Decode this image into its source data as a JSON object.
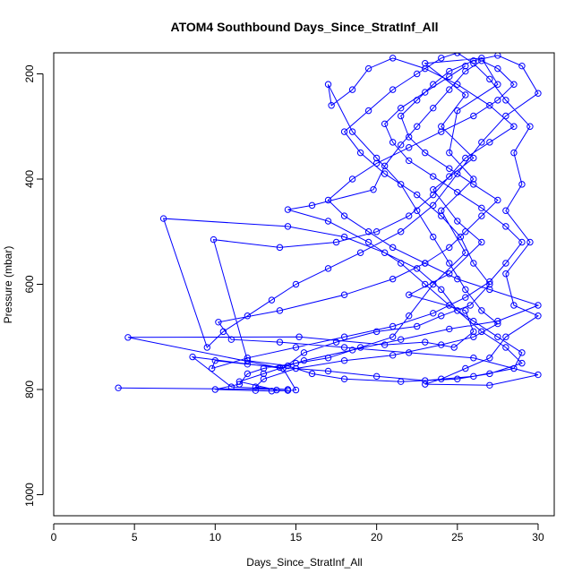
{
  "chart_data": {
    "type": "scatter",
    "title": "ATOM4 Southbound Days_Since_StratInf_All",
    "xlabel": "Days_Since_StratInf_All",
    "ylabel": "Pressure (mbar)",
    "xlim": [
      0,
      31
    ],
    "ylim": [
      1040,
      160
    ],
    "y_inverted": true,
    "x_ticks": [
      0,
      5,
      10,
      15,
      20,
      25,
      30
    ],
    "y_ticks": [
      200,
      400,
      600,
      800,
      1000
    ],
    "color": "#0000ff",
    "marker": "open-circle",
    "connected": true,
    "series": [
      {
        "points": [
          [
            4.0,
            797
          ],
          [
            14.5,
            800
          ],
          [
            11.0,
            795
          ],
          [
            8.6,
            738
          ],
          [
            14.2,
            760
          ],
          [
            4.6,
            701
          ],
          [
            15.2,
            700
          ],
          [
            20.5,
            715
          ],
          [
            23.0,
            710
          ],
          [
            24.8,
            720
          ],
          [
            26.0,
            690
          ],
          [
            25.5,
            650
          ],
          [
            22.0,
            620
          ],
          [
            24.5,
            580
          ],
          [
            26.5,
            520
          ],
          [
            25.0,
            480
          ],
          [
            23.5,
            420
          ],
          [
            26.0,
            360
          ],
          [
            24.0,
            300
          ],
          [
            25.5,
            240
          ],
          [
            23.0,
            180
          ],
          [
            26.5,
            170
          ],
          [
            27.5,
            220
          ],
          [
            25.0,
            270
          ],
          [
            24.5,
            350
          ],
          [
            26.0,
            400
          ],
          [
            24.0,
            460
          ],
          [
            25.5,
            540
          ],
          [
            23.5,
            600
          ],
          [
            22.0,
            660
          ],
          [
            21.0,
            700
          ],
          [
            19.0,
            720
          ],
          [
            17.0,
            740
          ],
          [
            15.0,
            750
          ],
          [
            13.0,
            760
          ],
          [
            12.0,
            770
          ],
          [
            11.5,
            790
          ],
          [
            10.0,
            800
          ],
          [
            12.5,
            802
          ],
          [
            13.5,
            803
          ],
          [
            14.5,
            802
          ],
          [
            15.0,
            801
          ],
          [
            14.2,
            760
          ],
          [
            15.5,
            730
          ],
          [
            17.5,
            710
          ],
          [
            20.0,
            690
          ],
          [
            22.5,
            680
          ],
          [
            24.0,
            660
          ],
          [
            25.8,
            640
          ],
          [
            27.0,
            600
          ],
          [
            26.0,
            560
          ],
          [
            25.2,
            510
          ],
          [
            24.0,
            470
          ],
          [
            22.5,
            430
          ],
          [
            20.5,
            390
          ],
          [
            19.0,
            350
          ],
          [
            18.0,
            310
          ],
          [
            19.5,
            270
          ],
          [
            21.0,
            230
          ],
          [
            22.5,
            200
          ],
          [
            24.0,
            170
          ],
          [
            25.0,
            160
          ],
          [
            26.0,
            180
          ],
          [
            27.0,
            210
          ],
          [
            28.0,
            250
          ],
          [
            29.5,
            300
          ],
          [
            28.5,
            350
          ],
          [
            29.0,
            410
          ],
          [
            28.0,
            460
          ],
          [
            29.5,
            520
          ],
          [
            28.0,
            580
          ],
          [
            28.5,
            640
          ],
          [
            30.0,
            660
          ],
          [
            28.0,
            700
          ],
          [
            27.0,
            740
          ],
          [
            25.5,
            760
          ],
          [
            24.0,
            780
          ],
          [
            23.0,
            790
          ],
          [
            27.0,
            792
          ],
          [
            30.0,
            772
          ],
          [
            26.0,
            740
          ],
          [
            22.0,
            730
          ],
          [
            18.0,
            720
          ],
          [
            14.0,
            710
          ],
          [
            11.0,
            705
          ],
          [
            10.2,
            672
          ],
          [
            14.0,
            650
          ],
          [
            18.0,
            620
          ],
          [
            21.0,
            590
          ],
          [
            23.0,
            560
          ],
          [
            24.5,
            530
          ],
          [
            25.5,
            500
          ],
          [
            26.5,
            470
          ],
          [
            27.5,
            440
          ],
          [
            26.0,
            410
          ],
          [
            24.5,
            380
          ],
          [
            23.0,
            350
          ],
          [
            22.0,
            320
          ],
          [
            21.5,
            280
          ],
          [
            22.5,
            250
          ],
          [
            23.5,
            220
          ],
          [
            24.5,
            195
          ],
          [
            26.0,
            175
          ],
          [
            27.5,
            165
          ],
          [
            29.0,
            185
          ],
          [
            30.0,
            237
          ],
          [
            28.0,
            280
          ],
          [
            26.5,
            330
          ],
          [
            25.0,
            390
          ],
          [
            23.5,
            450
          ],
          [
            21.5,
            500
          ],
          [
            19.0,
            540
          ],
          [
            17.0,
            570
          ],
          [
            15.0,
            600
          ],
          [
            13.5,
            630
          ],
          [
            12.0,
            660
          ],
          [
            10.5,
            690
          ],
          [
            9.5,
            720
          ],
          [
            6.8,
            475
          ],
          [
            14.5,
            490
          ],
          [
            18.0,
            510
          ],
          [
            20.5,
            540
          ],
          [
            22.5,
            570
          ],
          [
            24.0,
            610
          ],
          [
            25.0,
            650
          ],
          [
            26.5,
            690
          ],
          [
            28.0,
            720
          ],
          [
            29.0,
            750
          ],
          [
            27.0,
            770
          ],
          [
            25.0,
            780
          ],
          [
            21.5,
            785
          ],
          [
            18.0,
            780
          ],
          [
            16.0,
            770
          ],
          [
            14.5,
            755
          ],
          [
            12.0,
            745
          ],
          [
            9.9,
            515
          ],
          [
            14.0,
            530
          ],
          [
            17.5,
            520
          ],
          [
            20.0,
            500
          ],
          [
            22.0,
            470
          ],
          [
            23.5,
            430
          ],
          [
            24.5,
            395
          ],
          [
            25.5,
            360
          ],
          [
            27.0,
            330
          ],
          [
            28.5,
            300
          ],
          [
            27.0,
            260
          ],
          [
            25.0,
            220
          ],
          [
            23.0,
            190
          ],
          [
            21.0,
            170
          ],
          [
            19.5,
            190
          ],
          [
            18.5,
            230
          ],
          [
            17.2,
            260
          ],
          [
            17.0,
            220
          ],
          [
            18.5,
            310
          ],
          [
            20.0,
            360
          ],
          [
            21.5,
            410
          ],
          [
            22.5,
            460
          ],
          [
            23.5,
            510
          ],
          [
            24.5,
            560
          ],
          [
            25.5,
            610
          ],
          [
            26.5,
            650
          ],
          [
            27.5,
            675
          ],
          [
            26.0,
            700
          ],
          [
            24.0,
            715
          ],
          [
            21.0,
            735
          ],
          [
            18.0,
            745
          ],
          [
            15.0,
            760
          ],
          [
            13.0,
            780
          ],
          [
            12.5,
            795
          ],
          [
            13.8,
            801
          ],
          [
            11.5,
            785
          ],
          [
            13.0,
            770
          ],
          [
            15.5,
            745
          ],
          [
            18.5,
            725
          ],
          [
            21.5,
            705
          ],
          [
            24.5,
            685
          ],
          [
            27.5,
            670
          ],
          [
            30.0,
            640
          ],
          [
            27.0,
            610
          ],
          [
            25.0,
            590
          ],
          [
            23.0,
            560
          ],
          [
            21.0,
            530
          ],
          [
            19.5,
            500
          ],
          [
            18.0,
            470
          ],
          [
            17.0,
            440
          ],
          [
            18.5,
            400
          ],
          [
            20.0,
            370
          ],
          [
            22.0,
            340
          ],
          [
            24.0,
            310
          ],
          [
            26.0,
            280
          ],
          [
            27.5,
            250
          ],
          [
            28.5,
            220
          ],
          [
            27.5,
            190
          ],
          [
            26.5,
            175
          ],
          [
            25.5,
            195
          ],
          [
            24.5,
            230
          ],
          [
            23.5,
            265
          ],
          [
            22.5,
            300
          ],
          [
            21.5,
            335
          ],
          [
            20.5,
            375
          ],
          [
            19.8,
            420
          ],
          [
            16.0,
            450
          ],
          [
            14.5,
            458
          ],
          [
            17.0,
            480
          ],
          [
            19.5,
            520
          ],
          [
            21.5,
            560
          ],
          [
            23.0,
            600
          ],
          [
            24.5,
            640
          ],
          [
            26.0,
            670
          ],
          [
            27.5,
            700
          ],
          [
            29.0,
            730
          ],
          [
            28.5,
            760
          ],
          [
            26.0,
            775
          ],
          [
            23.0,
            783
          ],
          [
            20.0,
            775
          ],
          [
            17.0,
            765
          ],
          [
            14.0,
            758
          ],
          [
            12.0,
            752
          ],
          [
            10.0,
            745
          ],
          [
            9.8,
            760
          ],
          [
            12.0,
            740
          ],
          [
            15.0,
            720
          ],
          [
            18.0,
            700
          ],
          [
            21.0,
            680
          ],
          [
            23.5,
            655
          ],
          [
            25.5,
            625
          ],
          [
            27.0,
            595
          ],
          [
            28.0,
            560
          ],
          [
            29.0,
            520
          ],
          [
            28.0,
            490
          ],
          [
            26.5,
            455
          ],
          [
            25.0,
            425
          ],
          [
            23.5,
            395
          ],
          [
            22.0,
            365
          ],
          [
            21.0,
            330
          ],
          [
            20.5,
            295
          ],
          [
            21.5,
            265
          ],
          [
            23.0,
            235
          ],
          [
            24.5,
            205
          ],
          [
            25.5,
            185
          ]
        ]
      }
    ]
  }
}
